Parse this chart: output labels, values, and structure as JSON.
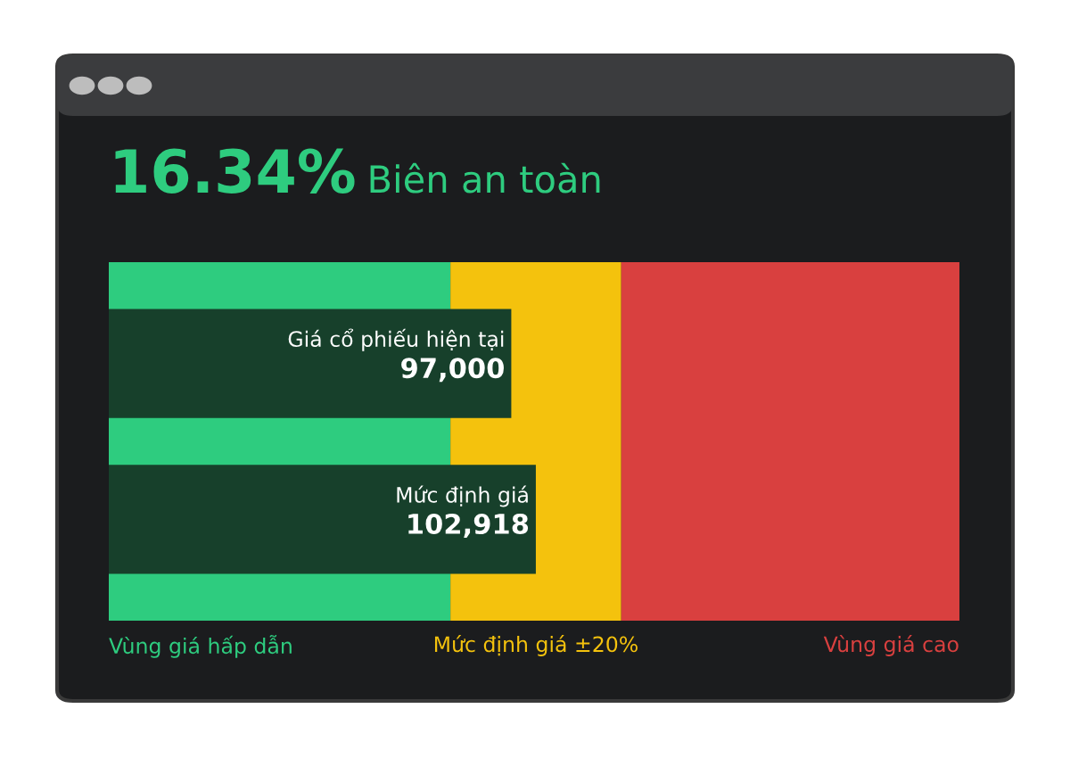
{
  "chart_data": {
    "type": "bar",
    "orientation": "horizontal",
    "title": "16.34%",
    "subtitle": "Biên an toàn",
    "categories": [
      "Giá cổ phiếu hiện tại",
      "Mức định giá"
    ],
    "values": [
      97000,
      102918
    ],
    "value_labels": [
      "97,000",
      "102,918"
    ],
    "color": "#17402b",
    "xlim": [
      0,
      205000
    ],
    "legend": false,
    "bands": [
      {
        "axis": "x",
        "from": 0,
        "to": 82334,
        "label": "Vùng giá hấp dẫn",
        "color": "#2ecc7f"
      },
      {
        "axis": "x",
        "from": 82334,
        "to": 123502,
        "label": "Mức định giá ±20%",
        "color": "#f4c20d"
      },
      {
        "axis": "x",
        "from": 123502,
        "to": 205000,
        "label": "Vùng giá cao",
        "color": "#d9403f"
      }
    ]
  }
}
